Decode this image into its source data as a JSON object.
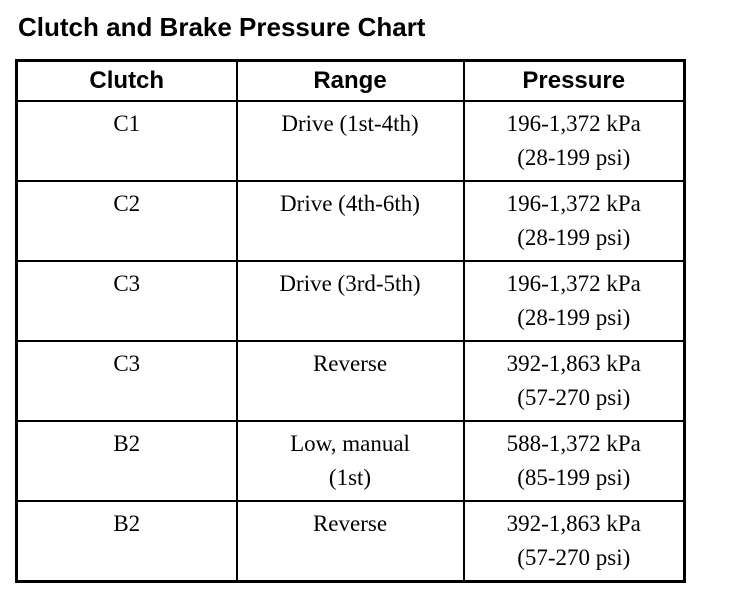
{
  "page": {
    "title": "Clutch and Brake Pressure Chart"
  },
  "table": {
    "headers": [
      "Clutch",
      "Range",
      "Pressure"
    ],
    "rows": [
      {
        "clutch": "C1",
        "range_line1": "Drive (1st-4th)",
        "pressure_kpa": "196-1,372 kPa",
        "pressure_psi": "(28-199 psi)"
      },
      {
        "clutch": "C2",
        "range_line1": "Drive (4th-6th)",
        "pressure_kpa": "196-1,372 kPa",
        "pressure_psi": "(28-199 psi)"
      },
      {
        "clutch": "C3",
        "range_line1": "Drive (3rd-5th)",
        "pressure_kpa": "196-1,372 kPa",
        "pressure_psi": "(28-199 psi)"
      },
      {
        "clutch": "C3",
        "range_line1": "Reverse",
        "pressure_kpa": "392-1,863 kPa",
        "pressure_psi": "(57-270 psi)"
      },
      {
        "clutch": "B2",
        "range_line1": "Low, manual",
        "range_line2": "(1st)",
        "pressure_kpa": "588-1,372 kPa",
        "pressure_psi": "(85-199 psi)"
      },
      {
        "clutch": "B2",
        "range_line1": "Reverse",
        "pressure_kpa": "392-1,863 kPa",
        "pressure_psi": "(57-270 psi)"
      }
    ]
  },
  "colors": {
    "text": "#000000",
    "background": "#ffffff",
    "border": "#000000"
  }
}
